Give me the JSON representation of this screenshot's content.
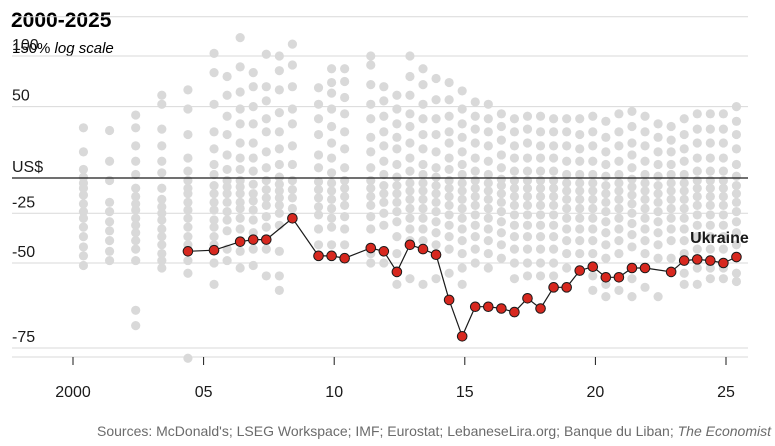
{
  "chart_data": {
    "type": "scatter",
    "title": "2000-2025",
    "subtitle": {
      "value": "150%",
      "note": "log scale"
    },
    "y_unit_label": "US$",
    "ylim": [
      -78,
      150
    ],
    "y_ticks": [
      {
        "value": 100,
        "label": "100"
      },
      {
        "value": 50,
        "label": "50"
      },
      {
        "value": -25,
        "label": "-25"
      },
      {
        "value": -50,
        "label": "-50"
      },
      {
        "value": -75,
        "label": "-75"
      }
    ],
    "xlim": [
      1999.0,
      2025.9
    ],
    "x_ticks": [
      {
        "value": 2000,
        "label": "2000"
      },
      {
        "value": 2005,
        "label": "05"
      },
      {
        "value": 2010,
        "label": "10"
      },
      {
        "value": 2015,
        "label": "15"
      },
      {
        "value": 2020,
        "label": "20"
      },
      {
        "value": 2025,
        "label": "25"
      }
    ],
    "highlight_label": "Ukraine",
    "source_text": "Sources: McDonald's; LSEG Workspace; IMF; Eurostat; LebaneseLira.org; Banque du Liban;",
    "source_italic": "The Economist",
    "highlight_series": {
      "name": "Ukraine",
      "x": [
        2004.4,
        2005.4,
        2006.4,
        2006.9,
        2007.4,
        2008.4,
        2009.4,
        2009.9,
        2010.4,
        2011.4,
        2011.9,
        2012.4,
        2012.9,
        2013.4,
        2013.9,
        2014.4,
        2014.9,
        2015.4,
        2015.9,
        2016.4,
        2016.9,
        2017.4,
        2017.9,
        2018.4,
        2018.9,
        2019.4,
        2019.9,
        2020.4,
        2020.9,
        2021.4,
        2021.9,
        2022.9,
        2023.4,
        2023.9,
        2024.4,
        2024.9,
        2025.4
      ],
      "y": [
        -45,
        -44.5,
        -40.5,
        -39.5,
        -39.5,
        -28,
        -47,
        -47,
        -48,
        -43.5,
        -45,
        -53.5,
        -42,
        -44,
        -46.5,
        -63,
        -72.5,
        -65,
        -65,
        -65.5,
        -66.5,
        -62.5,
        -65.5,
        -59,
        -59,
        -53,
        -51.5,
        -55.5,
        -55.5,
        -52,
        -52,
        -53.5,
        -49,
        -48.5,
        -49,
        -50,
        -47.5
      ]
    },
    "others": {
      "name": "Other countries",
      "columns": [
        {
          "x": 2000.4,
          "y": [
            33,
            16,
            5,
            0.5,
            -4,
            -8,
            -13,
            -19,
            -24,
            -28,
            -33,
            -38,
            -43,
            -47,
            -51
          ]
        },
        {
          "x": 2001.4,
          "y": [
            31,
            10,
            -2,
            -18,
            -24,
            -30,
            -35,
            -40,
            -45,
            -49
          ]
        },
        {
          "x": 2002.4,
          "y": [
            43,
            33,
            20,
            10,
            2,
            -8,
            -14,
            -19,
            -23,
            -28,
            -32,
            -36,
            -40,
            -44,
            -49,
            -66,
            -70
          ]
        },
        {
          "x": 2003.4,
          "y": [
            60,
            52,
            32,
            20,
            10,
            3,
            -8,
            -16,
            -21,
            -25,
            -29,
            -34,
            -38,
            -42,
            -46,
            -49,
            -52
          ]
        },
        {
          "x": 2004.4,
          "y": [
            65,
            48,
            28,
            12,
            4,
            -2,
            -8,
            -12,
            -18,
            -23,
            -28,
            -33,
            -38,
            -42,
            -49,
            -54,
            -77
          ]
        },
        {
          "x": 2005.4,
          "y": [
            103,
            82,
            52,
            30,
            18,
            8,
            2,
            -6,
            -12,
            -18,
            -23,
            -29,
            -33,
            -38,
            -42,
            -50,
            -58
          ]
        },
        {
          "x": 2005.9,
          "y": [
            78,
            60,
            42,
            28,
            14,
            5,
            -2,
            -7,
            -12,
            -18,
            -24,
            -29,
            -35,
            -44,
            -49
          ]
        },
        {
          "x": 2006.4,
          "y": [
            122,
            88,
            63,
            48,
            36,
            22,
            12,
            5,
            -2,
            -7,
            -12,
            -18,
            -22,
            -28,
            -34,
            -45,
            -52
          ]
        },
        {
          "x": 2006.9,
          "y": [
            82,
            68,
            50,
            36,
            22,
            12,
            4,
            -5,
            -12,
            -17,
            -23,
            -29,
            -36,
            -44,
            -51
          ]
        },
        {
          "x": 2007.4,
          "y": [
            102,
            68,
            55,
            40,
            30,
            16,
            6,
            -2,
            -9,
            -15,
            -20,
            -27,
            -33,
            -44,
            -55
          ]
        },
        {
          "x": 2007.9,
          "y": [
            100,
            84,
            65,
            45,
            30,
            18,
            8,
            0.5,
            -5,
            -10,
            -15,
            -20,
            -25,
            -32,
            -45,
            -55,
            -60
          ]
        },
        {
          "x": 2008.4,
          "y": [
            114,
            90,
            68,
            48,
            36,
            20,
            8,
            -2,
            -9,
            -15,
            -22
          ]
        },
        {
          "x": 2009.4,
          "y": [
            67,
            52,
            40,
            28,
            14,
            6,
            -3,
            -9,
            -15,
            -21,
            -26,
            -34,
            -42
          ]
        },
        {
          "x": 2009.9,
          "y": [
            86,
            72,
            62,
            48,
            34,
            22,
            12,
            3,
            -4,
            -10,
            -16,
            -22,
            -28,
            -33,
            -42
          ]
        },
        {
          "x": 2010.4,
          "y": [
            86,
            73,
            58,
            44,
            30,
            18,
            6,
            -2,
            -8,
            -14,
            -20,
            -27,
            -34,
            -42
          ]
        },
        {
          "x": 2011.4,
          "y": [
            100,
            90,
            70,
            52,
            40,
            26,
            16,
            6,
            -2,
            -8,
            -14,
            -20,
            -27,
            -34,
            -46,
            -50
          ]
        },
        {
          "x": 2011.9,
          "y": [
            68,
            55,
            42,
            30,
            20,
            10,
            2,
            -6,
            -12,
            -18,
            -25,
            -32,
            -45,
            -50
          ]
        },
        {
          "x": 2012.4,
          "y": [
            60,
            48,
            36,
            26,
            18,
            8,
            0.5,
            -6,
            -12,
            -18,
            -24,
            -30,
            -38,
            -46,
            -53,
            -58
          ]
        },
        {
          "x": 2012.9,
          "y": [
            100,
            78,
            60,
            44,
            34,
            22,
            12,
            4,
            -4,
            -10,
            -16,
            -22,
            -28,
            -34,
            -40,
            -56
          ]
        },
        {
          "x": 2013.4,
          "y": [
            86,
            70,
            52,
            40,
            28,
            18,
            8,
            2,
            -4,
            -10,
            -16,
            -22,
            -28,
            -34,
            -40,
            -58
          ]
        },
        {
          "x": 2013.9,
          "y": [
            76,
            56,
            40,
            28,
            16,
            6,
            0.5,
            -6,
            -12,
            -18,
            -24,
            -30,
            -36,
            -42,
            -56
          ]
        },
        {
          "x": 2014.4,
          "y": [
            72,
            56,
            42,
            30,
            22,
            12,
            5,
            -2,
            -8,
            -14,
            -20,
            -26,
            -32,
            -38,
            -44,
            -54
          ]
        },
        {
          "x": 2014.9,
          "y": [
            64,
            48,
            36,
            26,
            16,
            8,
            2,
            -4,
            -10,
            -16,
            -22,
            -28,
            -34,
            -40,
            -46,
            -52,
            -58
          ]
        },
        {
          "x": 2015.4,
          "y": [
            54,
            42,
            32,
            22,
            12,
            4,
            -2,
            -8,
            -14,
            -20,
            -26,
            -32,
            -38,
            -44,
            -50
          ]
        },
        {
          "x": 2015.9,
          "y": [
            52,
            40,
            30,
            20,
            10,
            2,
            -4,
            -10,
            -16,
            -22,
            -28,
            -34,
            -40,
            -46,
            -52
          ]
        },
        {
          "x": 2016.4,
          "y": [
            44,
            34,
            24,
            14,
            6,
            -1,
            -6,
            -12,
            -18,
            -24,
            -30,
            -36,
            -42,
            -48
          ]
        },
        {
          "x": 2016.9,
          "y": [
            40,
            30,
            20,
            12,
            4,
            -2,
            -8,
            -14,
            -20,
            -26,
            -32,
            -38,
            -44,
            -50,
            -56
          ]
        },
        {
          "x": 2017.4,
          "y": [
            42,
            32,
            22,
            12,
            4,
            -2,
            -8,
            -14,
            -20,
            -26,
            -32,
            -38,
            -44,
            -50,
            -55
          ]
        },
        {
          "x": 2017.9,
          "y": [
            42,
            30,
            20,
            12,
            4,
            -2,
            -8,
            -14,
            -20,
            -26,
            -32,
            -38,
            -44,
            -50,
            -55
          ]
        },
        {
          "x": 2018.4,
          "y": [
            40,
            30,
            20,
            12,
            4,
            -2,
            -8,
            -14,
            -20,
            -26,
            -32,
            -38,
            -44,
            -50,
            -55
          ]
        },
        {
          "x": 2018.9,
          "y": [
            40,
            30,
            20,
            10,
            2,
            -4,
            -10,
            -16,
            -22,
            -28,
            -34,
            -40,
            -46,
            -52
          ]
        },
        {
          "x": 2019.4,
          "y": [
            40,
            28,
            18,
            10,
            2,
            -4,
            -10,
            -16,
            -22,
            -28,
            -34,
            -40,
            -46,
            -53
          ]
        },
        {
          "x": 2019.9,
          "y": [
            42,
            30,
            20,
            10,
            2,
            -4,
            -10,
            -16,
            -22,
            -28,
            -34,
            -40,
            -46,
            -55,
            -60
          ]
        },
        {
          "x": 2020.4,
          "y": [
            38,
            26,
            16,
            8,
            1,
            -6,
            -12,
            -18,
            -24,
            -30,
            -36,
            -42,
            -48,
            -58,
            -62
          ]
        },
        {
          "x": 2020.9,
          "y": [
            44,
            30,
            20,
            10,
            2,
            -4,
            -10,
            -16,
            -22,
            -28,
            -34,
            -40,
            -46,
            -60
          ]
        },
        {
          "x": 2021.4,
          "y": [
            46,
            34,
            22,
            14,
            6,
            -1,
            -7,
            -13,
            -19,
            -25,
            -31,
            -37,
            -43,
            -56,
            -62
          ]
        },
        {
          "x": 2021.9,
          "y": [
            42,
            30,
            20,
            10,
            2,
            -4,
            -10,
            -16,
            -22,
            -28,
            -34,
            -40,
            -46,
            -59
          ]
        },
        {
          "x": 2022.4,
          "y": [
            36,
            26,
            16,
            8,
            1,
            -6,
            -12,
            -18,
            -24,
            -30,
            -36,
            -42,
            -48,
            -62
          ]
        },
        {
          "x": 2022.9,
          "y": [
            34,
            24,
            16,
            8,
            2,
            -4,
            -10,
            -16,
            -22,
            -28,
            -34,
            -40,
            -48
          ]
        },
        {
          "x": 2023.4,
          "y": [
            40,
            28,
            18,
            10,
            2,
            -4,
            -10,
            -16,
            -22,
            -28,
            -34,
            -40,
            -46,
            -54,
            -58
          ]
        },
        {
          "x": 2023.9,
          "y": [
            44,
            32,
            22,
            12,
            4,
            -2,
            -8,
            -14,
            -20,
            -26,
            -32,
            -38,
            -44,
            -52,
            -58
          ]
        },
        {
          "x": 2024.4,
          "y": [
            44,
            32,
            22,
            12,
            4,
            -2,
            -8,
            -14,
            -20,
            -26,
            -32,
            -38,
            -44,
            -52,
            -56
          ]
        },
        {
          "x": 2024.9,
          "y": [
            44,
            32,
            22,
            12,
            4,
            -2,
            -8,
            -14,
            -20,
            -26,
            -32,
            -38,
            -44,
            -52,
            -56
          ]
        },
        {
          "x": 2025.4,
          "y": [
            50,
            38,
            28,
            18,
            8,
            1,
            -6,
            -12,
            -18,
            -24,
            -30,
            -36,
            -42,
            -54,
            -57
          ]
        }
      ]
    }
  }
}
